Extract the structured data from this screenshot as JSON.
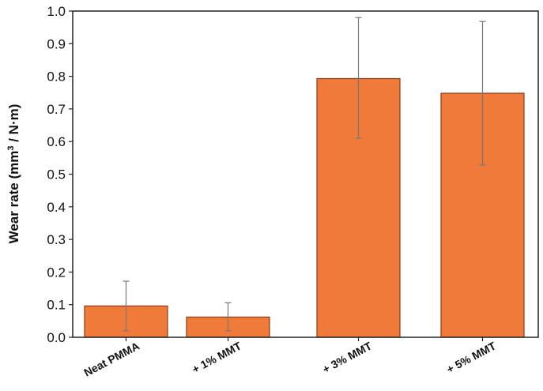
{
  "chart_data": {
    "type": "bar",
    "categories": [
      "Neat PMMA",
      "+ 1% MMT",
      "+ 3% MMT",
      "+ 5% MMT"
    ],
    "values": [
      0.096,
      0.062,
      0.793,
      0.748
    ],
    "error_low": [
      0.02,
      0.02,
      0.61,
      0.528
    ],
    "error_high": [
      0.172,
      0.106,
      0.98,
      0.968
    ],
    "ylabel_main": "Wear rate (mm",
    "ylabel_sup": "3",
    "ylabel_rest": " / N·m)",
    "ylim": [
      0,
      1.0
    ],
    "yticks": [
      "0.0",
      "0.1",
      "0.2",
      "0.3",
      "0.4",
      "0.5",
      "0.6",
      "0.7",
      "0.8",
      "0.9",
      "1.0"
    ],
    "grid": false,
    "bar_color": "#f07a3a",
    "bar_edge": "#8a3c14",
    "error_color": "#777777"
  }
}
